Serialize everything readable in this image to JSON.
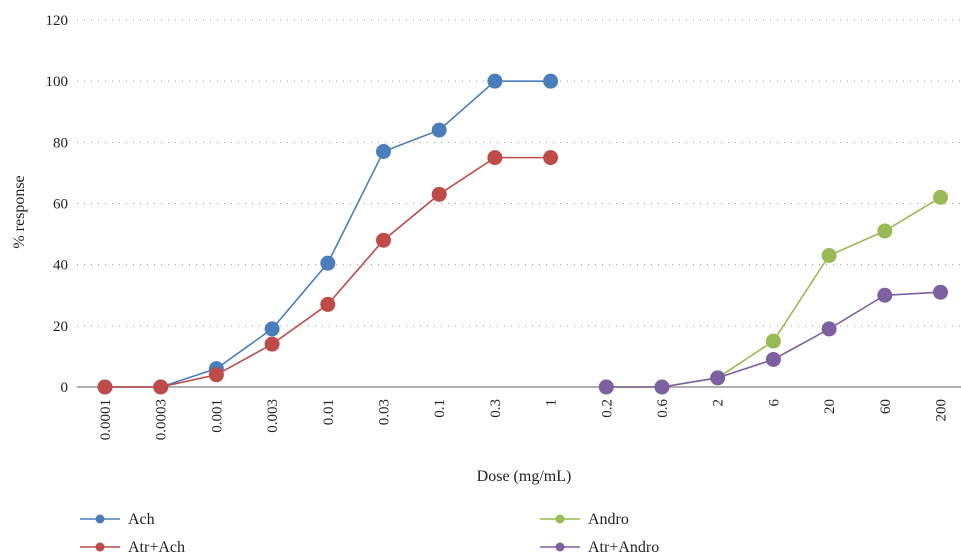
{
  "chart_data": {
    "type": "line",
    "xlabel": "Dose (mg/mL)",
    "ylabel": "% response",
    "ylim": [
      0,
      120
    ],
    "yticks": [
      "0",
      "20",
      "40",
      "60",
      "80",
      "100",
      "120"
    ],
    "categories": [
      "0.0001",
      "0.0003",
      "0.001",
      "0.003",
      "0.01",
      "0.03",
      "0.1",
      "0.3",
      "1",
      "0.2",
      "0.6",
      "2",
      "6",
      "20",
      "60",
      "200"
    ],
    "grid": "horizontal dotted",
    "legend_position": "bottom",
    "series": [
      {
        "name": "Ach",
        "color": "#4a7ebb",
        "values": [
          0,
          0,
          6,
          19,
          40.5,
          77,
          84,
          100,
          100,
          null,
          null,
          null,
          null,
          null,
          null,
          null
        ]
      },
      {
        "name": "Atr+Ach",
        "color": "#be4b48",
        "values": [
          0,
          0,
          4,
          14,
          27,
          48,
          63,
          75,
          75,
          null,
          null,
          null,
          null,
          null,
          null,
          null
        ]
      },
      {
        "name": "Andro",
        "color": "#98b954",
        "values": [
          null,
          null,
          null,
          null,
          null,
          null,
          null,
          null,
          null,
          0,
          0,
          3,
          15,
          43,
          51,
          62
        ]
      },
      {
        "name": "Atr+Andro",
        "color": "#7d60a0",
        "values": [
          null,
          null,
          null,
          null,
          null,
          null,
          null,
          null,
          null,
          0,
          0,
          3,
          9,
          19,
          30,
          31
        ]
      }
    ]
  }
}
